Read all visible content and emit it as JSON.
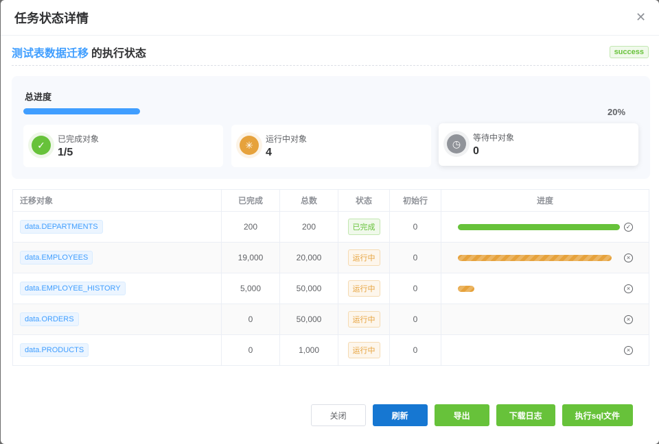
{
  "dialog": {
    "title": "任务状态详情",
    "close_icon": "close-icon"
  },
  "task": {
    "name": "测试表数据迁移",
    "suffix": "的执行状态",
    "status": "success"
  },
  "overview": {
    "title": "总进度",
    "percent": 20,
    "percent_label": "20%",
    "accent": "#409eff",
    "cards": [
      {
        "label": "已完成对象",
        "value": "1/5",
        "icon": "check-icon",
        "color": "#67c23a"
      },
      {
        "label": "运行中对象",
        "value": "4",
        "icon": "loading-icon",
        "color": "#e6a23c"
      },
      {
        "label": "等待中对象",
        "value": "0",
        "icon": "clock-icon",
        "color": "#909399"
      }
    ]
  },
  "table": {
    "headers": [
      "迁移对象",
      "已完成",
      "总数",
      "状态",
      "初始行",
      "进度"
    ],
    "rows": [
      {
        "object": "data.DEPARTMENTS",
        "done": "200",
        "total": "200",
        "status": "已完成",
        "init": "0",
        "progress": 100,
        "status_icon": "check-circle-icon"
      },
      {
        "object": "data.EMPLOYEES",
        "done": "19,000",
        "total": "20,000",
        "status": "运行中",
        "init": "0",
        "progress": 95,
        "status_icon": "close-circle-icon"
      },
      {
        "object": "data.EMPLOYEE_HISTORY",
        "done": "5,000",
        "total": "50,000",
        "status": "运行中",
        "init": "0",
        "progress": 10,
        "status_icon": "close-circle-icon"
      },
      {
        "object": "data.ORDERS",
        "done": "0",
        "total": "50,000",
        "status": "运行中",
        "init": "0",
        "progress": 0,
        "status_icon": "close-circle-icon"
      },
      {
        "object": "data.PRODUCTS",
        "done": "0",
        "total": "1,000",
        "status": "运行中",
        "init": "0",
        "progress": 0,
        "status_icon": "close-circle-icon"
      }
    ]
  },
  "buttons": {
    "close": "关闭",
    "refresh": "刷新",
    "export": "导出",
    "download_log": "下载日志",
    "exec_sql": "执行sql文件"
  }
}
